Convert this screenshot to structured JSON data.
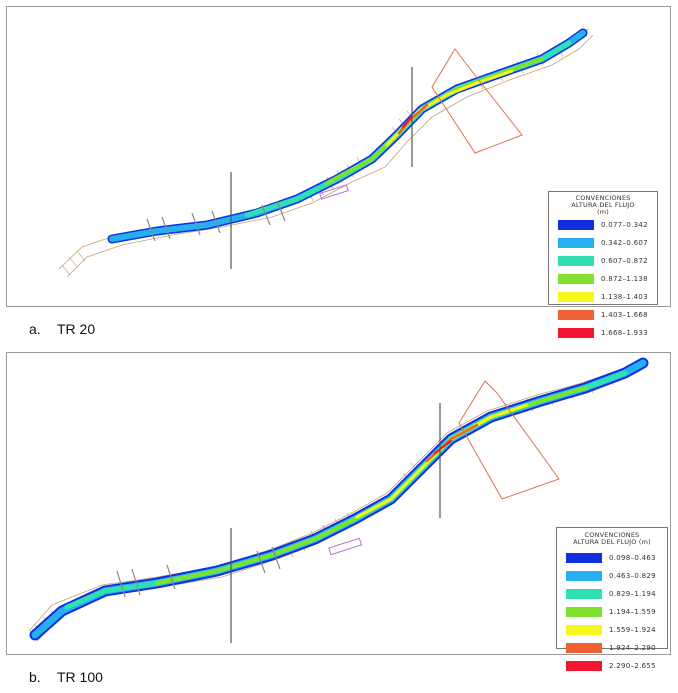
{
  "figures": [
    {
      "caption_letter": "a.",
      "caption_text": "TR 20",
      "legend": {
        "title_line1": "CONVENCIONES",
        "title_line2": "ALTURA DEL FLUJO",
        "title_line3": "(m)",
        "entries": [
          {
            "range": "0.077–0.342",
            "color": "#1030e0"
          },
          {
            "range": "0.342–0.607",
            "color": "#25b0f0"
          },
          {
            "range": "0.607–0.872",
            "color": "#30e0b0"
          },
          {
            "range": "0.872–1.138",
            "color": "#80e030"
          },
          {
            "range": "1.138–1.403",
            "color": "#f5f520"
          },
          {
            "range": "1.403–1.668",
            "color": "#f06030"
          },
          {
            "range": "1.668–1.933",
            "color": "#f01530"
          }
        ]
      }
    },
    {
      "caption_letter": "b.",
      "caption_text": "TR 100",
      "legend": {
        "title_line1": "CONVENCIONES",
        "title_line2": "ALTURA DEL FLUJO (m)",
        "title_line3": "",
        "entries": [
          {
            "range": "0.098–0.463",
            "color": "#1030e0"
          },
          {
            "range": "0.463–0.829",
            "color": "#25b0f0"
          },
          {
            "range": "0.829–1.194",
            "color": "#30e0b0"
          },
          {
            "range": "1.194–1.559",
            "color": "#80e030"
          },
          {
            "range": "1.559–1.924",
            "color": "#f5f520"
          },
          {
            "range": "1.924–2.290",
            "color": "#f06030"
          },
          {
            "range": "2.290–2.655",
            "color": "#f01530"
          }
        ]
      }
    }
  ]
}
